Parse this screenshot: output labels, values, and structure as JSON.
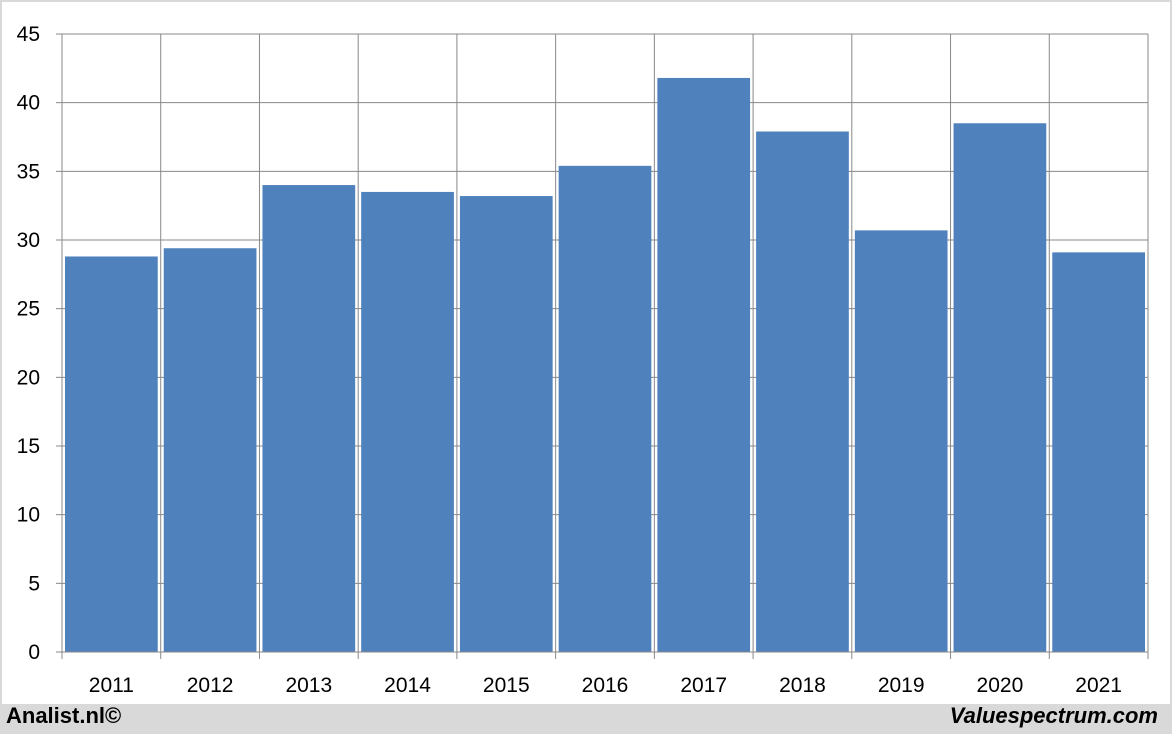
{
  "chart_data": {
    "type": "bar",
    "title": "",
    "xlabel": "",
    "ylabel": "",
    "categories": [
      "2011",
      "2012",
      "2013",
      "2014",
      "2015",
      "2016",
      "2017",
      "2018",
      "2019",
      "2020",
      "2021"
    ],
    "values": [
      28.8,
      29.4,
      34.0,
      33.5,
      33.2,
      35.4,
      41.8,
      37.9,
      30.7,
      38.5,
      29.1
    ],
    "ylim": [
      0,
      45
    ],
    "yticks": [
      0,
      5,
      10,
      15,
      20,
      25,
      30,
      35,
      40,
      45
    ],
    "grid": true,
    "bar_color": "#4f81bd",
    "grid_color": "#888888"
  },
  "footer": {
    "left": "Analist.nl©",
    "right": "Valuespectrum.com"
  }
}
